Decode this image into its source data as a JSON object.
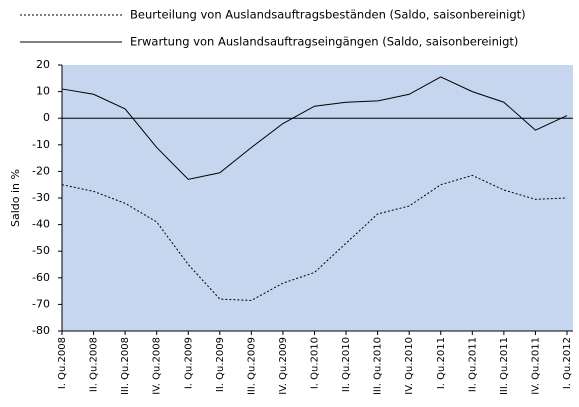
{
  "chart_data": {
    "type": "line",
    "ylabel": "Saldo in %",
    "categories": [
      "I. Qu.2008",
      "II. Qu.2008",
      "III. Qu.2008",
      "IV. Qu.2008",
      "I. Qu.2009",
      "II. Qu.2009",
      "III. Qu.2009",
      "IV. Qu.2009",
      "I. Qu.2010",
      "II. Qu.2010",
      "III. Qu.2010",
      "IV. Qu.2010",
      "I. Qu.2011",
      "II. Qu.2011",
      "III. Qu.2011",
      "IV. Qu.2011",
      "I. Qu.2012"
    ],
    "series": [
      {
        "name": "Beurteilung von Auslandsauftragsbeständen (Saldo, saisonbereinigt)",
        "color": "#000000",
        "line_style": "dotted",
        "values": [
          -25,
          -27.5,
          -32,
          -39,
          -55,
          -68,
          -68.5,
          -62,
          -58,
          -47,
          -36,
          -33,
          -25,
          -21.5,
          -27,
          -30.5,
          -30
        ]
      },
      {
        "name": "Erwartung von Auslandsauftragseingängen (Saldo, saisonbereinigt)",
        "color": "#000000",
        "line_style": "solid",
        "values": [
          11,
          9,
          3.5,
          -11,
          -23,
          -20.5,
          -11,
          -2,
          4.5,
          6,
          6.5,
          9,
          15.5,
          10,
          6,
          -4.5,
          1
        ]
      }
    ],
    "ylim": [
      -80,
      20
    ],
    "yticks": [
      -80,
      -70,
      -60,
      -50,
      -40,
      -30,
      -20,
      -10,
      0,
      10,
      20
    ],
    "plot_background": "#c6d6ee",
    "legend": "top"
  }
}
